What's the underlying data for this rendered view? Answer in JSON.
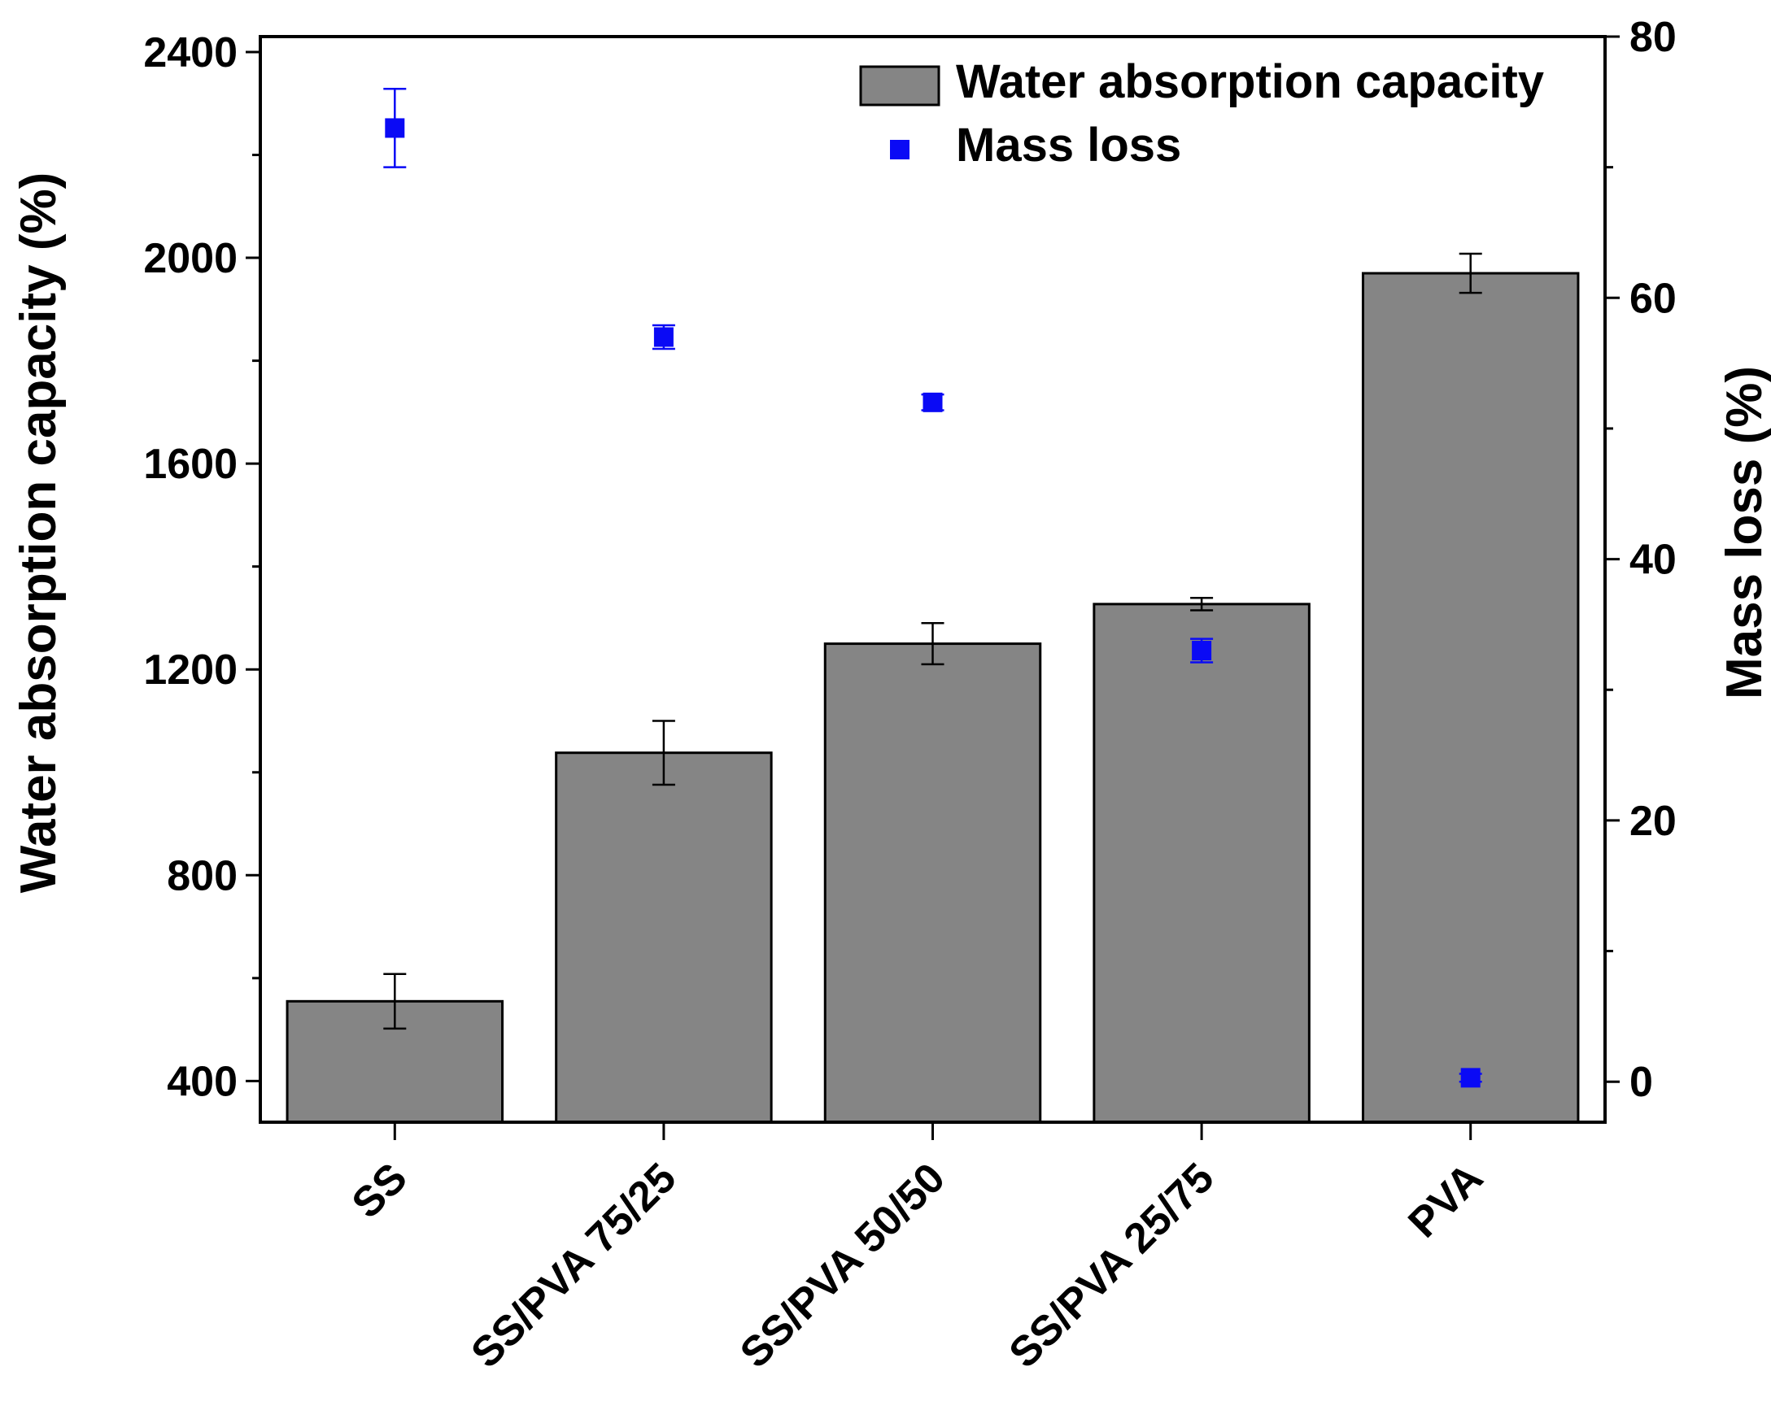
{
  "chart_data": {
    "type": "bar",
    "categories": [
      "SS",
      "SS/PVA 75/25",
      "SS/PVA 50/50",
      "SS/PVA 25/75",
      "PVA"
    ],
    "series": [
      {
        "name": "Water absorption capacity",
        "kind": "bar",
        "axis": "left",
        "values": [
          555,
          1038,
          1250,
          1327,
          1970
        ],
        "errors": [
          53,
          62,
          40,
          12,
          38
        ]
      },
      {
        "name": "Mass loss",
        "kind": "scatter",
        "axis": "right",
        "values": [
          73.0,
          57.0,
          52.0,
          33.0,
          0.3
        ],
        "errors": [
          3.0,
          0.9,
          0.6,
          0.9,
          0.3
        ]
      }
    ],
    "ylabel": "Water absorption capacity (%)",
    "y2label": "Mass loss (%)",
    "xlabel": "",
    "ylim": [
      320,
      2430
    ],
    "y2lim": [
      -3.1,
      80
    ],
    "yticks": [
      "400",
      "800",
      "1200",
      "1600",
      "2000",
      "2400"
    ],
    "y2ticks": [
      "0",
      "20",
      "40",
      "60",
      "80"
    ],
    "legend": {
      "position": "top-right"
    },
    "colors": {
      "bar": "#858585",
      "scatter": "#0a0af5",
      "axis": "#000000"
    }
  }
}
